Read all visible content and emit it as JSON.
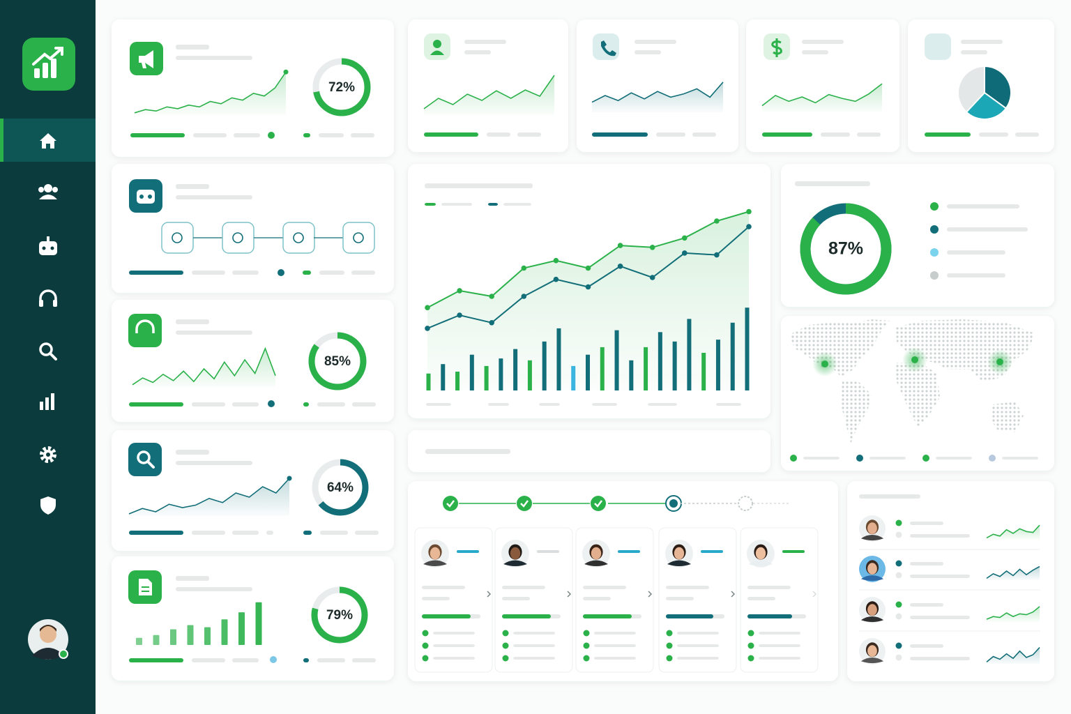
{
  "gauges": [
    {
      "value": 72,
      "label": "72%"
    },
    {
      "value": 85,
      "label": "85%"
    },
    {
      "value": 64,
      "label": "64%"
    },
    {
      "value": 79,
      "label": "79%"
    }
  ],
  "summary": {
    "gauge": {
      "value": 87,
      "label": "87%"
    }
  },
  "sparklines": [
    {
      "color": "#2bb14a",
      "values": [
        5,
        12,
        9,
        18,
        14,
        22,
        18,
        30,
        25,
        38,
        33,
        48,
        42,
        60,
        95
      ]
    },
    {
      "color": "#2bb14a",
      "values": [
        5,
        20,
        10,
        28,
        14,
        35,
        12,
        40,
        18,
        55,
        25,
        60,
        30,
        85,
        25
      ]
    },
    {
      "color": "#126e78",
      "values": [
        5,
        18,
        10,
        28,
        20,
        26,
        42,
        32,
        55,
        45,
        70,
        55,
        90
      ]
    },
    {
      "color": "#2bb14a",
      "values": [
        15,
        40,
        25,
        50,
        35,
        58,
        40,
        60,
        45,
        95
      ]
    },
    {
      "color": "#126e78",
      "values": [
        30,
        50,
        35,
        58,
        40,
        62,
        45,
        55,
        70,
        45,
        90
      ]
    },
    {
      "color": "#2bb14a",
      "values": [
        20,
        55,
        35,
        50,
        30,
        58,
        45,
        35,
        60,
        95
      ]
    },
    {
      "color": "#2bb14a",
      "values": [
        10,
        30,
        20,
        55,
        35,
        60,
        45,
        40,
        80
      ]
    },
    {
      "color": "#126e78",
      "values": [
        10,
        35,
        20,
        50,
        25,
        60,
        30,
        55,
        75
      ]
    },
    {
      "color": "#2bb14a",
      "values": [
        15,
        30,
        25,
        50,
        30,
        45,
        40,
        55,
        85
      ]
    },
    {
      "color": "#126e78",
      "values": [
        10,
        40,
        25,
        55,
        30,
        70,
        35,
        50,
        90
      ]
    }
  ],
  "bar_sparkline": {
    "color": "#2bb14a",
    "values": [
      10,
      14,
      22,
      28,
      25,
      36,
      46,
      60
    ]
  },
  "main_chart": {
    "series": [
      {
        "color": "#2bb14a",
        "values": [
          44,
          53,
          50,
          65,
          69,
          65,
          77,
          76,
          81,
          90,
          95
        ]
      },
      {
        "color": "#126e78",
        "values": [
          33,
          40,
          36,
          50,
          59,
          55,
          66,
          60,
          73,
          72,
          87
        ]
      }
    ],
    "bars": [
      9,
      14,
      10,
      19,
      13,
      17,
      22,
      16,
      26,
      33,
      13,
      19,
      23,
      32,
      16,
      23,
      31,
      26,
      38,
      20,
      27,
      36,
      44
    ],
    "bar_colors": [
      "#2bb14a",
      "#126e78",
      "#2bb14a",
      "#126e78",
      "#2bb14a",
      "#126e78",
      "#126e78",
      "#2bb14a",
      "#126e78",
      "#126e78",
      "#3ab5e0",
      "#126e78",
      "#2bb14a",
      "#126e78",
      "#126e78",
      "#2bb14a",
      "#126e78",
      "#126e78",
      "#126e78",
      "#2bb14a",
      "#126e78",
      "#126e78",
      "#126e78"
    ]
  },
  "pie": {
    "values": [
      35,
      27,
      38
    ],
    "colors": [
      "#0f6b78",
      "#1ba7b5",
      "#e4e7e7"
    ]
  }
}
